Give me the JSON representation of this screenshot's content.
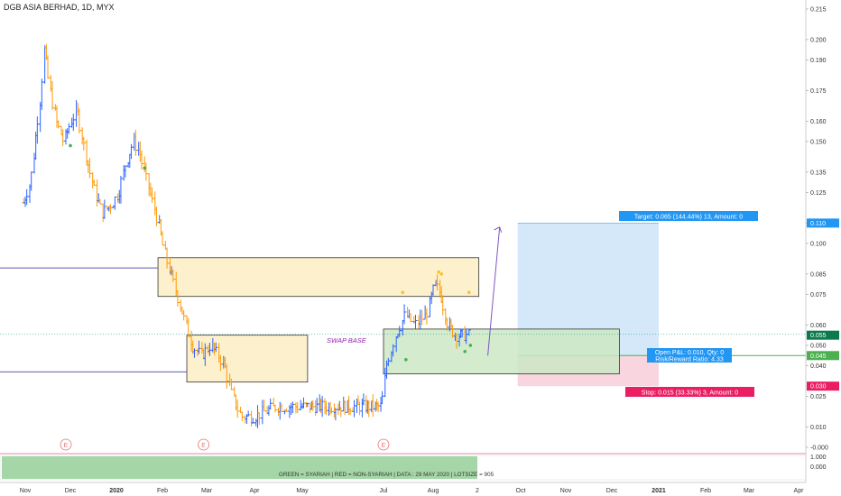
{
  "header": {
    "title": "DGB ASIA BERHAD, 1D, MYX"
  },
  "price_axis": {
    "ticks": [
      "0.215",
      "0.200",
      "0.190",
      "0.175",
      "0.160",
      "0.150",
      "0.135",
      "0.125",
      "0.110",
      "0.100",
      "0.085",
      "0.075",
      "0.060",
      "0.050",
      "0.040",
      "0.025",
      "0.010",
      "-0.000"
    ],
    "tick_values": [
      0.215,
      0.2,
      0.19,
      0.175,
      0.16,
      0.15,
      0.135,
      0.125,
      0.11,
      0.1,
      0.085,
      0.075,
      0.06,
      0.05,
      0.04,
      0.025,
      0.01,
      -0.0
    ],
    "badges": [
      {
        "label": "0.110",
        "value": 0.11,
        "color": "#2196f3"
      },
      {
        "label": "0.055",
        "value": 0.055,
        "color": "#0d7a4e"
      },
      {
        "label": "0.045",
        "value": 0.045,
        "color": "#4caf50"
      },
      {
        "label": "0.030",
        "value": 0.03,
        "color": "#e91e63"
      }
    ]
  },
  "indicator_axis": {
    "ticks": [
      "1.000",
      "0.000"
    ]
  },
  "time_axis": {
    "labels": [
      "Nov",
      "Dec",
      "2020",
      "Feb",
      "Mar",
      "Apr",
      "May",
      "Jul",
      "Aug",
      "2",
      "Oct",
      "Nov",
      "Dec",
      "2021",
      "Feb",
      "Mar",
      "Apr"
    ]
  },
  "annotations": {
    "swap_base": "SWAP BASE",
    "target": "Target: 0.065 (144.44%) 13, Amount: 0",
    "open_pnl": "Open P&L: 0.010, Qty: 0",
    "risk_reward": "Risk/Reward Ratio: 4.33",
    "stop": "Stop: 0.015 (33.33%) 3, Amount: 0",
    "earnings_marker": "E"
  },
  "indicator": {
    "text": "GREEN = SYARIAH  |  RED = NON-SYARIAH  |  DATA : 29 MAY 2020  |  LOTSIZE = 905"
  },
  "colors": {
    "up": "#2962ff",
    "down": "#ff9800",
    "zone_fill": "#fdefc8",
    "zone_border": "#333333",
    "swap_zone": "#cde8c4",
    "target_zone": "#d4e8f9",
    "stop_zone": "#f9d6df",
    "level_line": "#5b5bb5",
    "indicator_green": "#a5d6a7"
  },
  "chart_data": {
    "type": "candlestick",
    "title": "DGB ASIA BERHAD, 1D, MYX",
    "x_range": [
      "2019-10-29",
      "2021-04-20"
    ],
    "ylim": [
      -0.003,
      0.218
    ],
    "grid": false,
    "ohlc_series": [
      {
        "date": "2019-10-31",
        "price": 0.12
      },
      {
        "date": "2019-11-05",
        "price": 0.13
      },
      {
        "date": "2019-11-08",
        "price": 0.15
      },
      {
        "date": "2019-11-12",
        "price": 0.175
      },
      {
        "date": "2019-11-14",
        "price": 0.195
      },
      {
        "date": "2019-11-18",
        "price": 0.175
      },
      {
        "date": "2019-11-22",
        "price": 0.16
      },
      {
        "date": "2019-11-27",
        "price": 0.15
      },
      {
        "date": "2019-12-02",
        "price": 0.16
      },
      {
        "date": "2019-12-06",
        "price": 0.165
      },
      {
        "date": "2019-12-10",
        "price": 0.15
      },
      {
        "date": "2019-12-13",
        "price": 0.14
      },
      {
        "date": "2019-12-18",
        "price": 0.125
      },
      {
        "date": "2019-12-23",
        "price": 0.115
      },
      {
        "date": "2019-12-30",
        "price": 0.12
      },
      {
        "date": "2020-01-03",
        "price": 0.125
      },
      {
        "date": "2020-01-08",
        "price": 0.14
      },
      {
        "date": "2020-01-13",
        "price": 0.15
      },
      {
        "date": "2020-01-17",
        "price": 0.145
      },
      {
        "date": "2020-01-22",
        "price": 0.13
      },
      {
        "date": "2020-01-28",
        "price": 0.115
      },
      {
        "date": "2020-02-03",
        "price": 0.095
      },
      {
        "date": "2020-02-07",
        "price": 0.085
      },
      {
        "date": "2020-02-11",
        "price": 0.075
      },
      {
        "date": "2020-02-17",
        "price": 0.06
      },
      {
        "date": "2020-02-21",
        "price": 0.05
      },
      {
        "date": "2020-02-27",
        "price": 0.045
      },
      {
        "date": "2020-03-04",
        "price": 0.05
      },
      {
        "date": "2020-03-09",
        "price": 0.045
      },
      {
        "date": "2020-03-13",
        "price": 0.04
      },
      {
        "date": "2020-03-18",
        "price": 0.025
      },
      {
        "date": "2020-03-24",
        "price": 0.015
      },
      {
        "date": "2020-04-01",
        "price": 0.015
      },
      {
        "date": "2020-04-15",
        "price": 0.02
      },
      {
        "date": "2020-05-05",
        "price": 0.02
      },
      {
        "date": "2020-05-28",
        "price": 0.02
      },
      {
        "date": "2020-06-15",
        "price": 0.02
      },
      {
        "date": "2020-06-30",
        "price": 0.02
      },
      {
        "date": "2020-07-03",
        "price": 0.04
      },
      {
        "date": "2020-07-09",
        "price": 0.055
      },
      {
        "date": "2020-07-15",
        "price": 0.065
      },
      {
        "date": "2020-07-21",
        "price": 0.06
      },
      {
        "date": "2020-07-28",
        "price": 0.065
      },
      {
        "date": "2020-08-03",
        "price": 0.08
      },
      {
        "date": "2020-08-07",
        "price": 0.075
      },
      {
        "date": "2020-08-12",
        "price": 0.06
      },
      {
        "date": "2020-08-18",
        "price": 0.055
      },
      {
        "date": "2020-08-24",
        "price": 0.055
      },
      {
        "date": "2020-08-28",
        "price": 0.055
      }
    ],
    "zones": [
      {
        "name": "supply-zone",
        "x0": "2020-01-29",
        "x1": "2020-09-03",
        "y_low": 0.074,
        "y_high": 0.093
      },
      {
        "name": "demand-zone",
        "x0": "2020-02-17",
        "x1": "2020-05-05",
        "y_low": 0.032,
        "y_high": 0.055
      },
      {
        "name": "swap-base-zone",
        "x0": "2020-07-01",
        "x1": "2020-12-06",
        "y_low": 0.036,
        "y_high": 0.058
      }
    ],
    "levels": [
      0.088,
      0.037
    ],
    "position": {
      "entry": 0.045,
      "target": 0.11,
      "stop": 0.03,
      "x0": "2020-09-29",
      "x1": "2021-01-01"
    }
  }
}
